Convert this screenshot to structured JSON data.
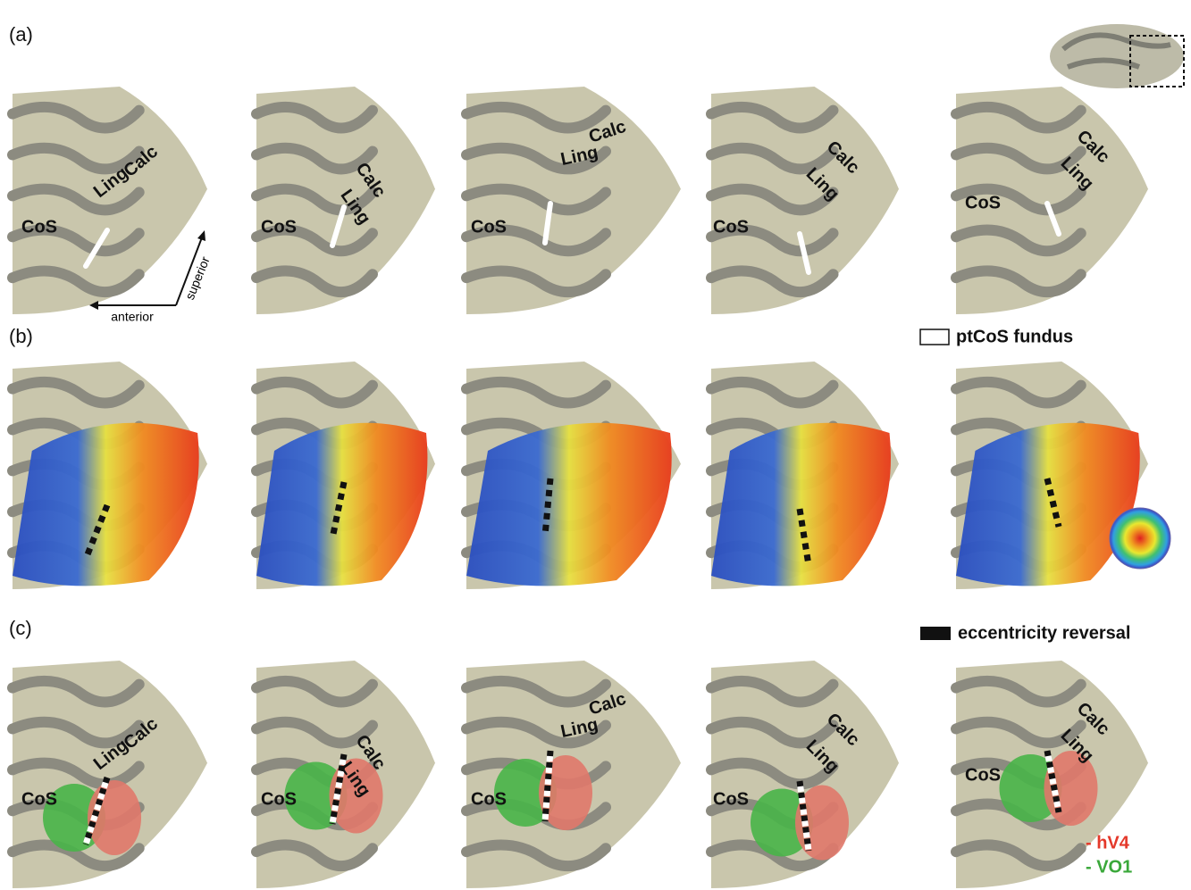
{
  "rows": [
    {
      "label": "(a)",
      "panels": [
        {
          "cos": "CoS",
          "ling": "Ling",
          "calc": "Calc"
        },
        {
          "cos": "CoS",
          "ling": "Ling",
          "calc": "Calc"
        },
        {
          "cos": "CoS",
          "ling": "Ling",
          "calc": "Calc"
        },
        {
          "cos": "CoS",
          "ling": "Ling",
          "calc": "Calc"
        },
        {
          "cos": "CoS",
          "ling": "Ling",
          "calc": "Calc"
        }
      ]
    },
    {
      "label": "(b)"
    },
    {
      "label": "(c)",
      "panels": [
        {
          "cos": "CoS",
          "ling": "Ling",
          "calc": "Calc"
        },
        {
          "cos": "CoS",
          "ling": "Ling",
          "calc": "Calc"
        },
        {
          "cos": "CoS",
          "ling": "Ling",
          "calc": "Calc"
        },
        {
          "cos": "CoS",
          "ling": "Ling",
          "calc": "Calc"
        },
        {
          "cos": "CoS",
          "ling": "Ling",
          "calc": "Calc"
        }
      ]
    }
  ],
  "orientation": {
    "anterior": "anterior",
    "superior": "superior"
  },
  "legend": {
    "fundus": "ptCoS fundus",
    "reversal": "eccentricity reversal",
    "hv4": "- hV4",
    "vo1": "- VO1"
  }
}
